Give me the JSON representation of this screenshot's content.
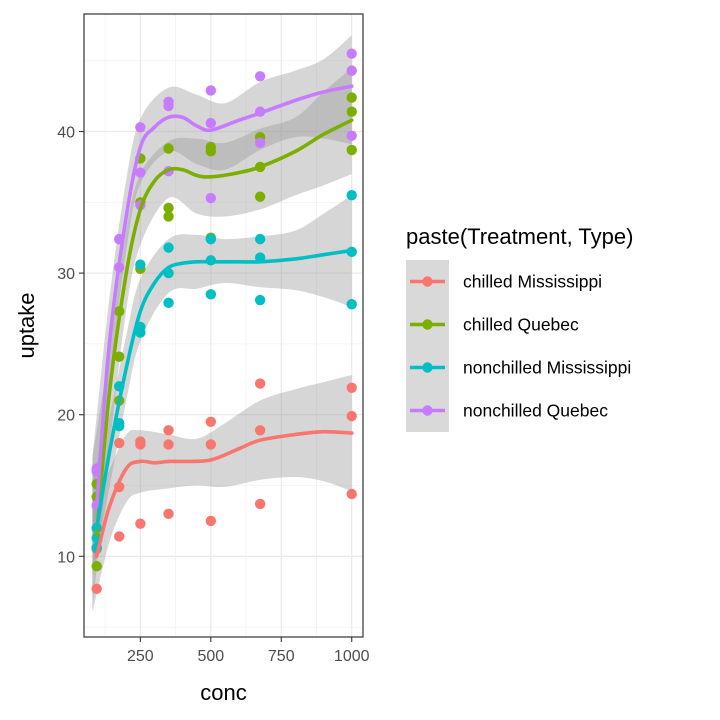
{
  "chart_data": {
    "type": "scatter",
    "xlabel": "conc",
    "ylabel": "uptake",
    "xlim": [
      50,
      1040
    ],
    "ylim": [
      4.3,
      48.3
    ],
    "x_ticks": [
      250,
      500,
      750,
      1000
    ],
    "x_tick_labels": [
      "250",
      "500",
      "750",
      "1000"
    ],
    "y_ticks": [
      10,
      20,
      30,
      40
    ],
    "y_tick_labels": [
      "10",
      "20",
      "30",
      "40"
    ],
    "grid": true,
    "smoother": "loess with confidence band",
    "legend": {
      "title": "paste(Treatment, Type)",
      "placement": "right"
    },
    "x": [
      95,
      175,
      250,
      350,
      500,
      675,
      1000
    ],
    "series": [
      {
        "name": "chilled Mississippi",
        "color": "#F8766D",
        "points": [
          [
            95,
            10.6
          ],
          [
            95,
            10.5
          ],
          [
            95,
            7.7
          ],
          [
            175,
            18.0
          ],
          [
            175,
            14.9
          ],
          [
            175,
            11.4
          ],
          [
            250,
            17.9
          ],
          [
            250,
            18.1
          ],
          [
            250,
            12.3
          ],
          [
            350,
            17.9
          ],
          [
            350,
            18.9
          ],
          [
            350,
            13.0
          ],
          [
            500,
            17.9
          ],
          [
            500,
            19.5
          ],
          [
            500,
            12.5
          ],
          [
            675,
            18.9
          ],
          [
            675,
            22.2
          ],
          [
            675,
            13.7
          ],
          [
            1000,
            19.9
          ],
          [
            1000,
            21.9
          ],
          [
            1000,
            14.4
          ]
        ],
        "smooth": [
          [
            95,
            10.0
          ],
          [
            140,
            13.5
          ],
          [
            200,
            16.2
          ],
          [
            250,
            16.7
          ],
          [
            300,
            16.6
          ],
          [
            350,
            16.7
          ],
          [
            400,
            16.7
          ],
          [
            500,
            16.8
          ],
          [
            600,
            17.6
          ],
          [
            675,
            18.2
          ],
          [
            800,
            18.6
          ],
          [
            900,
            18.8
          ],
          [
            1000,
            18.7
          ]
        ],
        "band_upper": [
          [
            80,
            13.6
          ],
          [
            140,
            16.1
          ],
          [
            200,
            18.6
          ],
          [
            250,
            18.9
          ],
          [
            350,
            18.6
          ],
          [
            450,
            18.3
          ],
          [
            550,
            19.4
          ],
          [
            675,
            21.0
          ],
          [
            800,
            21.8
          ],
          [
            900,
            22.3
          ],
          [
            1000,
            22.8
          ]
        ],
        "band_lower": [
          [
            80,
            6.0
          ],
          [
            140,
            11.0
          ],
          [
            200,
            13.8
          ],
          [
            250,
            14.5
          ],
          [
            350,
            14.8
          ],
          [
            450,
            15.0
          ],
          [
            550,
            14.9
          ],
          [
            675,
            15.4
          ],
          [
            800,
            15.6
          ],
          [
            900,
            15.3
          ],
          [
            1000,
            14.6
          ]
        ]
      },
      {
        "name": "chilled Quebec",
        "color": "#7CAE00",
        "points": [
          [
            95,
            14.2
          ],
          [
            95,
            9.3
          ],
          [
            95,
            15.1
          ],
          [
            175,
            24.1
          ],
          [
            175,
            27.3
          ],
          [
            175,
            21.0
          ],
          [
            250,
            30.3
          ],
          [
            250,
            35.0
          ],
          [
            250,
            38.1
          ],
          [
            350,
            34.6
          ],
          [
            350,
            38.8
          ],
          [
            350,
            34.0
          ],
          [
            500,
            32.5
          ],
          [
            500,
            38.6
          ],
          [
            500,
            38.9
          ],
          [
            675,
            35.4
          ],
          [
            675,
            37.5
          ],
          [
            675,
            39.6
          ],
          [
            1000,
            38.7
          ],
          [
            1000,
            42.4
          ],
          [
            1000,
            41.4
          ]
        ],
        "smooth": [
          [
            95,
            11.5
          ],
          [
            140,
            21.5
          ],
          [
            200,
            30.0
          ],
          [
            250,
            34.5
          ],
          [
            300,
            36.5
          ],
          [
            350,
            37.3
          ],
          [
            400,
            37.3
          ],
          [
            450,
            36.9
          ],
          [
            500,
            36.8
          ],
          [
            600,
            37.1
          ],
          [
            675,
            37.5
          ],
          [
            800,
            38.6
          ],
          [
            900,
            39.8
          ],
          [
            1000,
            40.8
          ]
        ],
        "band_upper": [
          [
            80,
            17.0
          ],
          [
            140,
            24.5
          ],
          [
            200,
            33.0
          ],
          [
            250,
            37.0
          ],
          [
            350,
            39.3
          ],
          [
            450,
            39.5
          ],
          [
            550,
            39.2
          ],
          [
            675,
            40.2
          ],
          [
            800,
            41.0
          ],
          [
            900,
            42.8
          ],
          [
            1000,
            44.5
          ]
        ],
        "band_lower": [
          [
            80,
            6.3
          ],
          [
            140,
            17.6
          ],
          [
            200,
            27.4
          ],
          [
            250,
            32.0
          ],
          [
            350,
            35.3
          ],
          [
            450,
            34.2
          ],
          [
            550,
            34.0
          ],
          [
            675,
            34.5
          ],
          [
            800,
            35.5
          ],
          [
            900,
            36.2
          ],
          [
            1000,
            37.0
          ]
        ]
      },
      {
        "name": "nonchilled Mississippi",
        "color": "#00BFC4",
        "points": [
          [
            95,
            12.0
          ],
          [
            95,
            11.3
          ],
          [
            95,
            10.6
          ],
          [
            175,
            22.0
          ],
          [
            175,
            19.4
          ],
          [
            175,
            19.2
          ],
          [
            250,
            30.6
          ],
          [
            250,
            25.8
          ],
          [
            250,
            26.2
          ],
          [
            350,
            31.8
          ],
          [
            350,
            27.9
          ],
          [
            350,
            30.0
          ],
          [
            500,
            32.4
          ],
          [
            500,
            28.5
          ],
          [
            500,
            30.9
          ],
          [
            675,
            31.1
          ],
          [
            675,
            28.1
          ],
          [
            675,
            32.4
          ],
          [
            1000,
            31.5
          ],
          [
            1000,
            27.8
          ],
          [
            1000,
            35.5
          ]
        ],
        "smooth": [
          [
            95,
            12.0
          ],
          [
            140,
            17.3
          ],
          [
            200,
            23.3
          ],
          [
            250,
            27.3
          ],
          [
            300,
            29.3
          ],
          [
            350,
            30.4
          ],
          [
            400,
            30.7
          ],
          [
            450,
            30.8
          ],
          [
            500,
            30.8
          ],
          [
            600,
            30.8
          ],
          [
            675,
            30.8
          ],
          [
            800,
            31.0
          ],
          [
            900,
            31.3
          ],
          [
            1000,
            31.6
          ]
        ],
        "band_upper": [
          [
            80,
            15.5
          ],
          [
            140,
            19.9
          ],
          [
            200,
            25.6
          ],
          [
            250,
            29.6
          ],
          [
            350,
            32.4
          ],
          [
            450,
            32.7
          ],
          [
            550,
            32.4
          ],
          [
            675,
            32.6
          ],
          [
            800,
            33.0
          ],
          [
            900,
            34.2
          ],
          [
            1000,
            35.5
          ]
        ],
        "band_lower": [
          [
            80,
            8.5
          ],
          [
            140,
            14.8
          ],
          [
            200,
            21.0
          ],
          [
            250,
            25.2
          ],
          [
            350,
            28.6
          ],
          [
            450,
            28.9
          ],
          [
            550,
            29.3
          ],
          [
            675,
            29.0
          ],
          [
            800,
            28.8
          ],
          [
            900,
            28.3
          ],
          [
            1000,
            27.6
          ]
        ]
      },
      {
        "name": "nonchilled Quebec",
        "color": "#C77CFF",
        "points": [
          [
            95,
            16.0
          ],
          [
            95,
            13.6
          ],
          [
            95,
            16.2
          ],
          [
            175,
            30.4
          ],
          [
            175,
            32.4
          ],
          [
            175,
            32.4
          ],
          [
            250,
            34.8
          ],
          [
            250,
            37.1
          ],
          [
            250,
            40.3
          ],
          [
            350,
            37.2
          ],
          [
            350,
            42.1
          ],
          [
            350,
            41.8
          ],
          [
            500,
            35.3
          ],
          [
            500,
            42.9
          ],
          [
            500,
            40.6
          ],
          [
            675,
            39.2
          ],
          [
            675,
            43.9
          ],
          [
            675,
            41.4
          ],
          [
            1000,
            39.7
          ],
          [
            1000,
            44.3
          ],
          [
            1000,
            45.5
          ]
        ],
        "smooth": [
          [
            95,
            13.5
          ],
          [
            140,
            25.0
          ],
          [
            200,
            34.0
          ],
          [
            250,
            38.9
          ],
          [
            300,
            40.3
          ],
          [
            350,
            41.0
          ],
          [
            400,
            41.0
          ],
          [
            450,
            40.4
          ],
          [
            500,
            40.1
          ],
          [
            600,
            40.8
          ],
          [
            675,
            41.3
          ],
          [
            800,
            42.2
          ],
          [
            900,
            42.8
          ],
          [
            1000,
            43.2
          ]
        ],
        "band_upper": [
          [
            80,
            17.0
          ],
          [
            140,
            28.2
          ],
          [
            200,
            36.6
          ],
          [
            250,
            40.9
          ],
          [
            350,
            43.1
          ],
          [
            450,
            42.6
          ],
          [
            550,
            42.0
          ],
          [
            675,
            43.5
          ],
          [
            800,
            44.3
          ],
          [
            900,
            45.1
          ],
          [
            1000,
            46.8
          ]
        ],
        "band_lower": [
          [
            80,
            10.0
          ],
          [
            140,
            22.1
          ],
          [
            200,
            31.6
          ],
          [
            250,
            36.3
          ],
          [
            350,
            38.6
          ],
          [
            450,
            37.7
          ],
          [
            550,
            37.3
          ],
          [
            675,
            38.7
          ],
          [
            800,
            39.6
          ],
          [
            900,
            39.5
          ],
          [
            1000,
            39.1
          ]
        ]
      }
    ]
  }
}
